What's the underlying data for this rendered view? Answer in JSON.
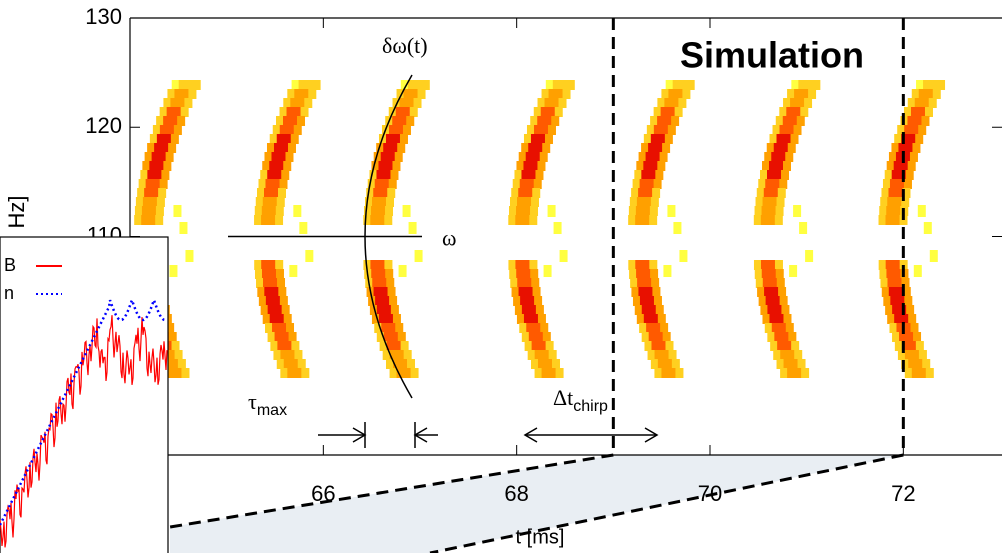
{
  "chart_data": {
    "type": "spectrogram",
    "title": "Simulation",
    "x_label": "t [ms]",
    "y_label": "Hz]",
    "xlim": [
      64,
      73
    ],
    "ylim": [
      90,
      130
    ],
    "xticks": [
      66,
      68,
      70,
      72
    ],
    "yticks": [
      110,
      120,
      130
    ],
    "chirp_times": [
      64.16,
      65.4,
      66.53,
      68.03,
      69.27,
      70.57,
      71.86
    ],
    "omega_freq": 110,
    "zoom_window": [
      69,
      72
    ],
    "annotations": {
      "delta_omega": "δω(t)",
      "omega": "ω",
      "tau": "τ",
      "tau_sub": "max",
      "dt": "Δt",
      "dt_sub": "chirp"
    },
    "inset": {
      "legend": [
        {
          "name": "B",
          "color": "#ff0000"
        },
        {
          "name": "n",
          "color": "#0000ff"
        }
      ]
    }
  }
}
